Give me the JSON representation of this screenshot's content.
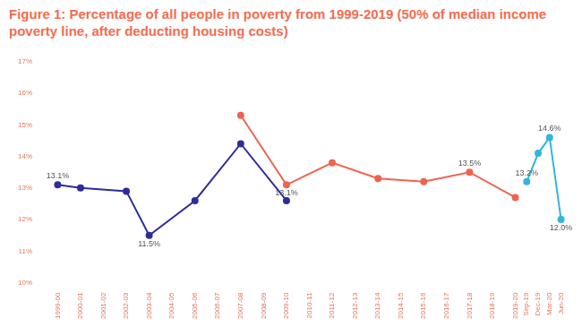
{
  "chart_data": {
    "type": "line",
    "title": "Figure 1: Percentage of all people in poverty from 1999-2019 (50% of median income poverty line, after deducting housing costs)",
    "categories": [
      "1999-00",
      null,
      "2000-01",
      null,
      "2001-02",
      null,
      "2002-03",
      null,
      "2003-04",
      null,
      "2004-05",
      null,
      "2005-06",
      null,
      "2006-07",
      null,
      "2007-08",
      null,
      "2008-09",
      null,
      "2009-10",
      null,
      "2010-11",
      null,
      "2011-12",
      null,
      "2012-13",
      null,
      "2013-14",
      null,
      "2014-15",
      null,
      "2015-16",
      null,
      "2016-17",
      null,
      "2017-18",
      null,
      "2018-19",
      null,
      "2019-20",
      "Sep-19",
      "Dec-19",
      "Mar-20",
      "Jun-20"
    ],
    "series": [
      {
        "color": "#2e2c9c",
        "marker": "circle",
        "line_style": "solid",
        "values": [
          13.1,
          null,
          13.0,
          null,
          null,
          null,
          12.9,
          null,
          11.5,
          null,
          null,
          null,
          12.6,
          null,
          null,
          null,
          14.4,
          null,
          null,
          null,
          12.6,
          null,
          null,
          null,
          null,
          null,
          null,
          null,
          null,
          null,
          null,
          null,
          null,
          null,
          null,
          null,
          null,
          null,
          null,
          null,
          null,
          null,
          null,
          null,
          null
        ],
        "value_labels": [
          "13.1%",
          null,
          null,
          null,
          null,
          null,
          null,
          null,
          "11.5%",
          null,
          null,
          null,
          null,
          null,
          null,
          null,
          null,
          null,
          null,
          null,
          null,
          null,
          null,
          null,
          null,
          null,
          null,
          null,
          null,
          null,
          null,
          null,
          null,
          null,
          null,
          null,
          null,
          null,
          null,
          null,
          null,
          null,
          null,
          null,
          null
        ]
      },
      {
        "color": "#ef6350",
        "marker": "circle",
        "line_style": "solid",
        "values": [
          null,
          null,
          null,
          null,
          null,
          null,
          null,
          null,
          null,
          null,
          null,
          null,
          null,
          null,
          null,
          null,
          15.3,
          null,
          null,
          null,
          13.1,
          null,
          null,
          null,
          13.8,
          null,
          null,
          null,
          13.3,
          null,
          null,
          null,
          13.2,
          null,
          null,
          null,
          13.5,
          null,
          null,
          null,
          12.7,
          null,
          null,
          null,
          null
        ],
        "value_labels": [
          null,
          null,
          null,
          null,
          null,
          null,
          null,
          null,
          null,
          null,
          null,
          null,
          null,
          null,
          null,
          null,
          null,
          null,
          null,
          null,
          "13.1%",
          null,
          null,
          null,
          null,
          null,
          null,
          null,
          null,
          null,
          null,
          null,
          null,
          null,
          null,
          null,
          "13.5%",
          null,
          null,
          null,
          null,
          null,
          null,
          null,
          null
        ]
      },
      {
        "color": "#33b5e0",
        "marker": "circle",
        "line_style": "solid",
        "values": [
          null,
          null,
          null,
          null,
          null,
          null,
          null,
          null,
          null,
          null,
          null,
          null,
          null,
          null,
          null,
          null,
          null,
          null,
          null,
          null,
          null,
          null,
          null,
          null,
          null,
          null,
          null,
          null,
          null,
          null,
          null,
          null,
          null,
          null,
          null,
          null,
          null,
          null,
          null,
          null,
          null,
          13.2,
          14.1,
          14.6,
          12.0
        ],
        "value_labels": [
          null,
          null,
          null,
          null,
          null,
          null,
          null,
          null,
          null,
          null,
          null,
          null,
          null,
          null,
          null,
          null,
          null,
          null,
          null,
          null,
          null,
          null,
          null,
          null,
          null,
          null,
          null,
          null,
          null,
          null,
          null,
          null,
          null,
          null,
          null,
          null,
          null,
          null,
          null,
          null,
          null,
          "13.2%",
          null,
          "14.6%",
          "12.0%"
        ]
      }
    ],
    "ylim": [
      10,
      17
    ],
    "yticks": [
      {
        "value": 10,
        "label": "10%"
      },
      {
        "value": 11,
        "label": "11%"
      },
      {
        "value": 12,
        "label": "12%"
      },
      {
        "value": 13,
        "label": "13%"
      },
      {
        "value": 14,
        "label": "14%"
      },
      {
        "value": 15,
        "label": "15%"
      },
      {
        "value": 16,
        "label": "16%"
      },
      {
        "value": 17,
        "label": "17%"
      }
    ],
    "grid": false,
    "data_labels": true
  }
}
